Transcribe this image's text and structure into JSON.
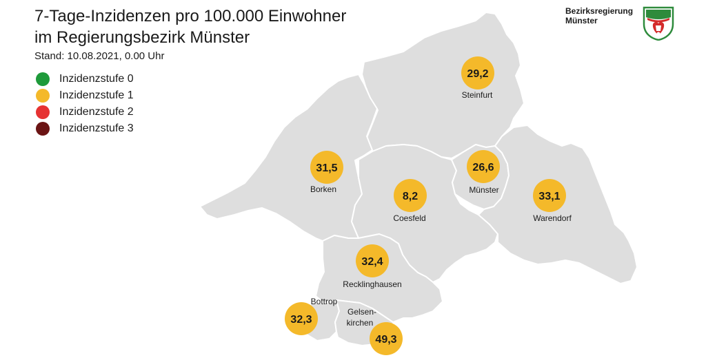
{
  "header": {
    "title_line1": "7-Tage-Inzidenzen pro 100.000 Einwohner",
    "title_line2": "im Regierungsbezirk Münster",
    "subtitle": "Stand: 10.08.2021, 0.00 Uhr"
  },
  "branding": {
    "line1": "Bezirksregierung",
    "line2": "Münster"
  },
  "legend": [
    {
      "label": "Inzidenzstufe 0",
      "color": "#1e9a3a"
    },
    {
      "label": "Inzidenzstufe 1",
      "color": "#f4b92a"
    },
    {
      "label": "Inzidenzstufe 2",
      "color": "#e63232"
    },
    {
      "label": "Inzidenzstufe 3",
      "color": "#6b1414"
    }
  ],
  "colors": {
    "region_fill": "#dedede",
    "region_border": "#ffffff",
    "marker": "#f4b92a"
  },
  "regions": {
    "steinfurt": {
      "name": "Steinfurt",
      "value": "29,2"
    },
    "borken": {
      "name": "Borken",
      "value": "31,5"
    },
    "coesfeld": {
      "name": "Coesfeld",
      "value": "8,2"
    },
    "muenster": {
      "name": "Münster",
      "value": "26,6"
    },
    "warendorf": {
      "name": "Warendorf",
      "value": "33,1"
    },
    "recklinghausen": {
      "name": "Recklinghausen",
      "value": "32,4"
    },
    "bottrop": {
      "name": "Bottrop",
      "value": "32,3"
    },
    "gelsenkirchen": {
      "name_line1": "Gelsen-",
      "name_line2": "kirchen",
      "value": "49,3"
    }
  }
}
